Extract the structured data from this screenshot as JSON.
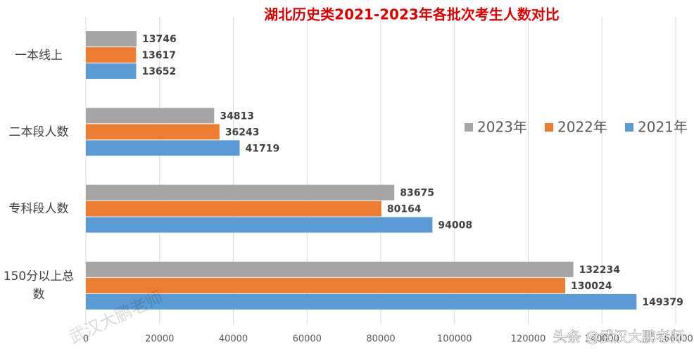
{
  "chart_data": {
    "type": "hbar",
    "title": "湖北历史类2021-2023年各批次考生人数对比",
    "categories": [
      "一本线上",
      "二本段人数",
      "专科段人数",
      "150分以上总数"
    ],
    "series": [
      {
        "name": "2023年",
        "color": "#a5a5a5",
        "values": [
          13746,
          34813,
          83675,
          132234
        ]
      },
      {
        "name": "2022年",
        "color": "#ed7d31",
        "values": [
          13617,
          36243,
          80164,
          130024
        ]
      },
      {
        "name": "2021年",
        "color": "#5b9bd5",
        "values": [
          13652,
          41719,
          94008,
          149379
        ]
      }
    ],
    "xlim": [
      0,
      160000
    ],
    "xticks": [
      0,
      20000,
      40000,
      60000,
      80000,
      100000,
      120000,
      140000,
      160000
    ],
    "grid": true,
    "legend": "right",
    "annotations": [
      "武汉大鹏老师",
      "头条 @武汉大鹏老师"
    ]
  }
}
